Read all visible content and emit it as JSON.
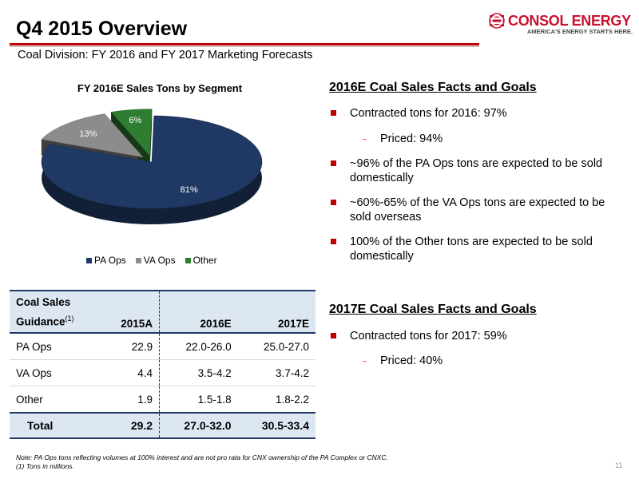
{
  "header": {
    "title": "Q4 2015 Overview",
    "subtitle": "Coal Division: FY 2016 and FY 2017 Marketing Forecasts",
    "accent_color": "#c00000"
  },
  "logo": {
    "name": "CONSOL ENERGY",
    "tagline": "AMERICA'S ENERGY STARTS HERE.",
    "color": "#c8102e"
  },
  "chart_data": {
    "type": "pie",
    "title": "FY 2016E Sales Tons by Segment",
    "categories": [
      "PA Ops",
      "VA Ops",
      "Other"
    ],
    "values": [
      81,
      13,
      6
    ],
    "labels": [
      "81%",
      "13%",
      "6%"
    ],
    "colors": [
      "#1f3864",
      "#8c8c8c",
      "#2e7d32"
    ],
    "legend": "bottom",
    "style": "3d exploded"
  },
  "facts_2016": {
    "title": "2016E Coal Sales Facts and Goals",
    "bullets": [
      "Contracted tons for 2016: 97%",
      "Priced: 94%",
      "~96% of the PA Ops tons are expected to be sold domestically",
      "~60%-65% of the VA Ops tons are expected to be sold overseas",
      "100% of the Other tons are expected to be sold domestically"
    ]
  },
  "facts_2017": {
    "title": "2017E Coal Sales Facts and Goals",
    "bullets": [
      "Contracted tons for 2017: 59%",
      "Priced: 40%"
    ]
  },
  "table": {
    "header_line1": "Coal Sales",
    "header_line2": "Guidance",
    "header_sup": "(1)",
    "columns": [
      "2015A",
      "2016E",
      "2017E"
    ],
    "rows": [
      {
        "label": "PA Ops",
        "values": [
          "22.9",
          "22.0-26.0",
          "25.0-27.0"
        ]
      },
      {
        "label": "VA Ops",
        "values": [
          "4.4",
          "3.5-4.2",
          "3.7-4.2"
        ]
      },
      {
        "label": "Other",
        "values": [
          "1.9",
          "1.5-1.8",
          "1.8-2.2"
        ]
      }
    ],
    "total": {
      "label": "Total",
      "values": [
        "29.2",
        "27.0-32.0",
        "30.5-33.4"
      ]
    }
  },
  "footnotes": {
    "note": "Note: PA Ops tons reflecting volumes at 100% interest and are not pro rata for CNX ownership of the PA Complex or CNXC.",
    "fn1": "(1)  Tons in millions."
  },
  "page_number": "11"
}
